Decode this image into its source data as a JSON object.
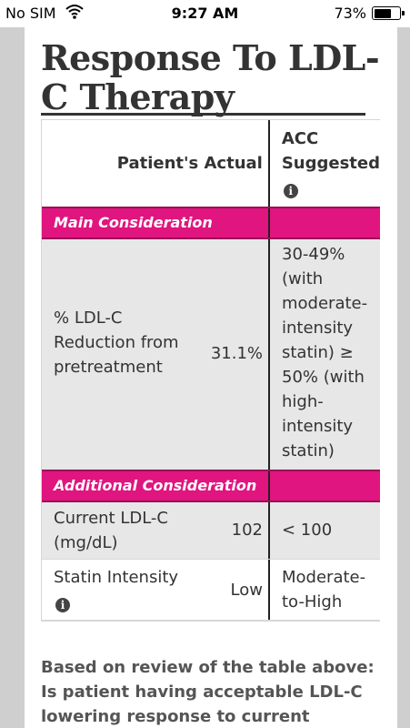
{
  "statusbar": {
    "carrier": "No SIM",
    "time": "9:27 AM",
    "battery": "73%",
    "battery_level": 0.73
  },
  "page": {
    "title": "Response To LDL-C Therapy"
  },
  "table": {
    "header": {
      "col1": "Patient's Actual",
      "col2": "ACC Suggested"
    },
    "sections": [
      {
        "label": "Main Consideration"
      },
      {
        "label": "Additional Consideration"
      }
    ],
    "rows": [
      {
        "label": "% LDL-C Reduction from pretreatment",
        "actual": "31.1%",
        "suggested": "30-49% (with moderate-intensity statin) ≥ 50% (with high-intensity statin)"
      },
      {
        "label": "Current LDL-C (mg/dL)",
        "actual": "102",
        "suggested": "< 100"
      },
      {
        "label": "Statin Intensity",
        "actual": "Low",
        "suggested": "Moderate-to-High"
      }
    ]
  },
  "question": "Based on review of the table above: Is patient having acceptable LDL-C lowering response to current",
  "icons": {
    "info": "i"
  },
  "colors": {
    "accent": "#e0157f",
    "row_grey": "#e7e7e7"
  }
}
